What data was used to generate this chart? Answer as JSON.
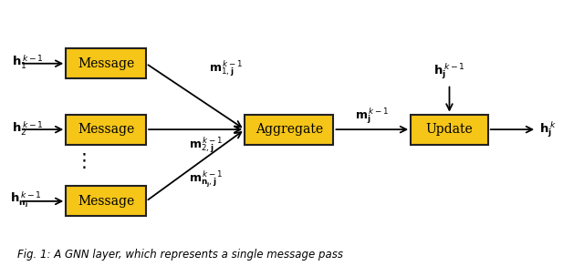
{
  "box_color": "#F5C518",
  "box_edge_color": "#222222",
  "background_color": "#ffffff",
  "figsize": [
    6.4,
    2.92
  ],
  "dpi": 100,
  "msg1": [
    0.175,
    0.76,
    0.14,
    0.13
  ],
  "msg2": [
    0.175,
    0.475,
    0.14,
    0.13
  ],
  "msg3": [
    0.175,
    0.165,
    0.14,
    0.13
  ],
  "agg": [
    0.495,
    0.475,
    0.155,
    0.13
  ],
  "upd": [
    0.775,
    0.475,
    0.135,
    0.13
  ],
  "caption": "Fig. 1: A GNN layer, which represents a single message pass"
}
